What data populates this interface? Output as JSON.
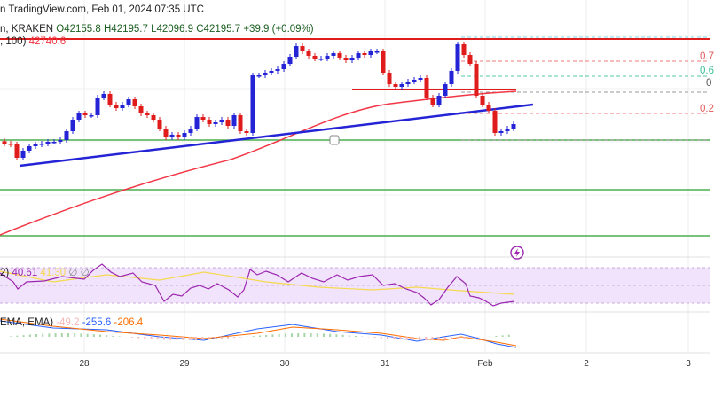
{
  "header": {
    "publisher": "n TradingView.com, Feb 01, 2024 07:35 UTC",
    "symbol": "n, KRAKEN",
    "open": "O42155.8",
    "high": "H42195.7",
    "low": "L42096.9",
    "close": "C42195.7",
    "change": "+39.9 (+0.09%)"
  },
  "sma": {
    "label": ", 100)",
    "value": "42740.6",
    "color": "#f23645"
  },
  "rsi": {
    "label": "2)",
    "value1": "40.61",
    "value2": "41.30",
    "extra1": "∅",
    "extra2": "∅",
    "color": "#9c27b0",
    "ma_color": "#f5d94e"
  },
  "macd": {
    "label": "EMA, EMA)",
    "hist": "-49.2",
    "macd": "-255.6",
    "signal": "-206.4"
  },
  "fib_labels": [
    "0.7",
    "0.6",
    "0",
    "0.2"
  ],
  "colors": {
    "up": "#2424d6",
    "down": "#e01b1b",
    "trend": "#2424d6",
    "support": "#4caf50",
    "resistance": "#e01b1b"
  },
  "chart_data": {
    "type": "candlestick",
    "title": "",
    "x_ticks": [
      "28",
      "29",
      "30",
      "31",
      "Feb",
      "2",
      "3"
    ],
    "closes": [
      41872,
      41858,
      41637,
      41755,
      41828,
      41858,
      41872,
      41902,
      41902,
      41931,
      42078,
      42269,
      42372,
      42343,
      42343,
      42637,
      42696,
      42519,
      42460,
      42519,
      42607,
      42490,
      42372,
      42343,
      42269,
      42122,
      41975,
      42020,
      41975,
      42049,
      42122,
      42313,
      42269,
      42196,
      42225,
      42269,
      42166,
      42343,
      42078,
      42049,
      43004,
      43004,
      43048,
      43078,
      43107,
      43195,
      43313,
      43489,
      43401,
      43328,
      43283,
      43283,
      43328,
      43372,
      43298,
      43254,
      43298,
      43372,
      43342,
      43401,
      43401,
      43048,
      42857,
      42813,
      42857,
      42901,
      42931,
      42960,
      42637,
      42519,
      42666,
      42857,
      43078,
      43519,
      43342,
      43195,
      42666,
      42519,
      42416,
      42049,
      42078,
      42122,
      42196
    ],
    "horizontal_levels": {
      "resistance": [
        43607,
        42770
      ],
      "support": [
        41931,
        41100,
        40340
      ]
    },
    "sma_100_last": 42740.6,
    "last_close": 42195.7
  }
}
